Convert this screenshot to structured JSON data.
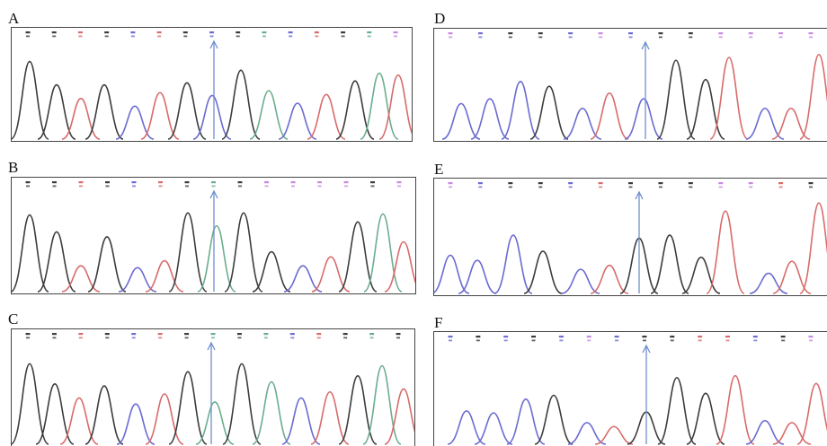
{
  "panels": [
    {
      "label": "A"
    },
    {
      "label": "B"
    },
    {
      "label": "C"
    },
    {
      "label": "D"
    },
    {
      "label": "E"
    },
    {
      "label": "F"
    }
  ],
  "colors": {
    "black": "#3c3c3c",
    "blue": "#6b6bd2",
    "red": "#d86b6b",
    "green": "#6aae8e",
    "pink": "#c889e0",
    "arrow": "#6f8fcf",
    "frame": "#444444"
  }
}
